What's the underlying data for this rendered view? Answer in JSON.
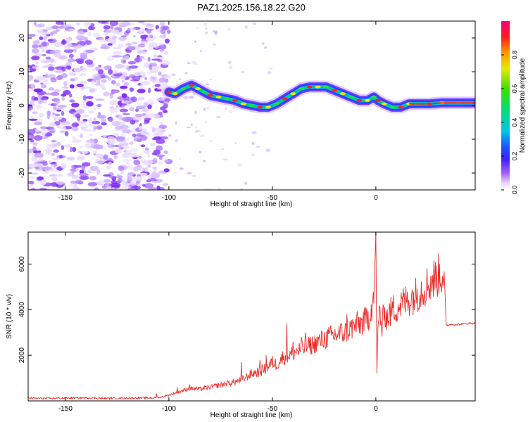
{
  "title": "PAZ1.2025.156.18.22.G20",
  "chart_data": [
    {
      "type": "heatmap",
      "xlabel": "Height of straight line (km)",
      "ylabel": "Frequency (Hz)",
      "xlim": [
        -168,
        48
      ],
      "ylim": [
        -25,
        25
      ],
      "xticks": [
        -150,
        -100,
        -50,
        0
      ],
      "yticks": [
        -20,
        -10,
        0,
        10,
        20
      ],
      "colorbar": {
        "label": "Normalized spectral amplitude",
        "range": [
          0,
          1
        ],
        "ticks": [
          "0.0",
          "0.2",
          "0.4",
          "0.6",
          "0.8"
        ],
        "tick_values": [
          0.0,
          0.2,
          0.4,
          0.6,
          0.8
        ],
        "colormap": "rainbow (purple to red)"
      },
      "noise_region_x": [
        -168,
        -100
      ],
      "ridge": [
        {
          "x": -100,
          "y": 4.0
        },
        {
          "x": -97,
          "y": 3.5
        },
        {
          "x": -93,
          "y": 5.0
        },
        {
          "x": -89,
          "y": 6.0
        },
        {
          "x": -86,
          "y": 5.0
        },
        {
          "x": -83,
          "y": 4.0
        },
        {
          "x": -80,
          "y": 3.0
        },
        {
          "x": -76,
          "y": 2.5
        },
        {
          "x": -72,
          "y": 2.0
        },
        {
          "x": -68,
          "y": 1.5
        },
        {
          "x": -64,
          "y": 0.5
        },
        {
          "x": -60,
          "y": 0.0
        },
        {
          "x": -56,
          "y": -0.5
        },
        {
          "x": -52,
          "y": -0.5
        },
        {
          "x": -48,
          "y": 0.5
        },
        {
          "x": -44,
          "y": 2.0
        },
        {
          "x": -40,
          "y": 3.5
        },
        {
          "x": -36,
          "y": 5.0
        },
        {
          "x": -32,
          "y": 5.5
        },
        {
          "x": -28,
          "y": 5.5
        },
        {
          "x": -24,
          "y": 5.5
        },
        {
          "x": -20,
          "y": 4.5
        },
        {
          "x": -16,
          "y": 3.5
        },
        {
          "x": -12,
          "y": 2.5
        },
        {
          "x": -8,
          "y": 1.5
        },
        {
          "x": -4,
          "y": 1.5
        },
        {
          "x": -1,
          "y": 2.5
        },
        {
          "x": 1,
          "y": 1.5
        },
        {
          "x": 4,
          "y": 0.5
        },
        {
          "x": 8,
          "y": -0.5
        },
        {
          "x": 12,
          "y": -0.5
        },
        {
          "x": 16,
          "y": 0.5
        },
        {
          "x": 20,
          "y": 0.5
        },
        {
          "x": 26,
          "y": 0.5
        },
        {
          "x": 32,
          "y": 0.8
        },
        {
          "x": 40,
          "y": 0.8
        },
        {
          "x": 48,
          "y": 0.8
        }
      ]
    },
    {
      "type": "line",
      "xlabel": "Height of straight line (km)",
      "ylabel": "SNR (10 * v/v)",
      "xlim": [
        -168,
        48
      ],
      "ylim": [
        0,
        7400
      ],
      "xticks": [
        -150,
        -100,
        -50,
        0
      ],
      "yticks": [
        2000,
        4000,
        6000
      ],
      "color": "#e8302a",
      "series": [
        {
          "x": [
            -168,
            -160,
            -150,
            -140,
            -130,
            -120,
            -110,
            -105,
            -100,
            -95,
            -90,
            -85,
            -80,
            -75,
            -70,
            -65,
            -60,
            -55,
            -52,
            -50,
            -48,
            -45,
            -42,
            -40,
            -35,
            -30,
            -25,
            -20,
            -15,
            -10,
            -5,
            -3,
            -2,
            -1,
            0,
            0.5,
            1,
            2,
            3,
            4,
            5,
            8,
            10,
            15,
            20,
            25,
            30,
            32,
            33,
            34,
            36,
            40,
            44,
            48
          ],
          "y": [
            120,
            110,
            120,
            130,
            110,
            120,
            130,
            140,
            250,
            400,
            550,
            520,
            600,
            700,
            800,
            900,
            1200,
            1300,
            1500,
            1700,
            1600,
            1900,
            2000,
            2100,
            2300,
            2500,
            2700,
            2900,
            3000,
            3300,
            3500,
            3800,
            4200,
            4500,
            7400,
            1200,
            3200,
            4000,
            3000,
            4200,
            3600,
            4000,
            4100,
            4400,
            4700,
            5100,
            5500,
            5600,
            5650,
            3300,
            3350,
            3350,
            3400,
            3400
          ]
        }
      ],
      "spikes": [
        {
          "x": -106,
          "y": 330
        },
        {
          "x": -96,
          "y": 600
        },
        {
          "x": -90,
          "y": 720
        },
        {
          "x": -65,
          "y": 1700
        },
        {
          "x": -56,
          "y": 1800
        },
        {
          "x": -55,
          "y": 1600
        },
        {
          "x": -53,
          "y": 2000
        },
        {
          "x": -43,
          "y": 3400
        },
        {
          "x": -40,
          "y": 2600
        },
        {
          "x": -36,
          "y": 2800
        },
        {
          "x": -34,
          "y": 3000
        },
        {
          "x": -30,
          "y": 2600
        },
        {
          "x": -20,
          "y": 2700
        },
        {
          "x": -14,
          "y": 3800
        }
      ]
    }
  ]
}
